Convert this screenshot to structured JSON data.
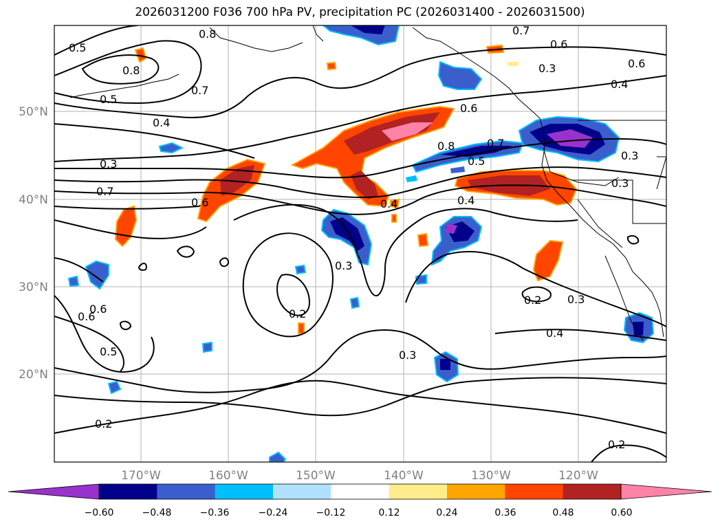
{
  "title": "2026031200 F036 700 hPa PV, precipitation PC (2026031400 - 2026031500)",
  "latitude_labels": [
    "50°N",
    "40°N",
    "30°N",
    "20°N"
  ],
  "longitude_labels": [
    "170°W",
    "160°W",
    "150°W",
    "140°W",
    "130°W",
    "120°W"
  ],
  "contour_labels": [
    "0.8",
    "0.7",
    "0.6",
    "0.5",
    "0.8",
    "0.7",
    "0.5",
    "0.4",
    "0.3",
    "0.7",
    "0.6",
    "0.3",
    "0.4",
    "0.6",
    "0.6",
    "0.8",
    "0.7",
    "0.5",
    "0.4",
    "0.3",
    "0.3",
    "0.6",
    "0.4",
    "0.3",
    "0.2",
    "0.6",
    "0.5",
    "0.3",
    "0.2",
    "0.3",
    "0.4",
    "0.2",
    "0.2"
  ],
  "colorbar": {
    "colors": [
      "#9932CC",
      "#00008B",
      "#3A5FCD",
      "#00BFFF",
      "#B0E2FF",
      "#FFFFFF",
      "#FFEC8B",
      "#FFA500",
      "#FF4500",
      "#B22222",
      "#FF83A8"
    ],
    "ticks": [
      "−0.60",
      "−0.48",
      "−0.36",
      "−0.24",
      "−0.12",
      "0.12",
      "0.24",
      "0.36",
      "0.48",
      "0.60"
    ]
  }
}
